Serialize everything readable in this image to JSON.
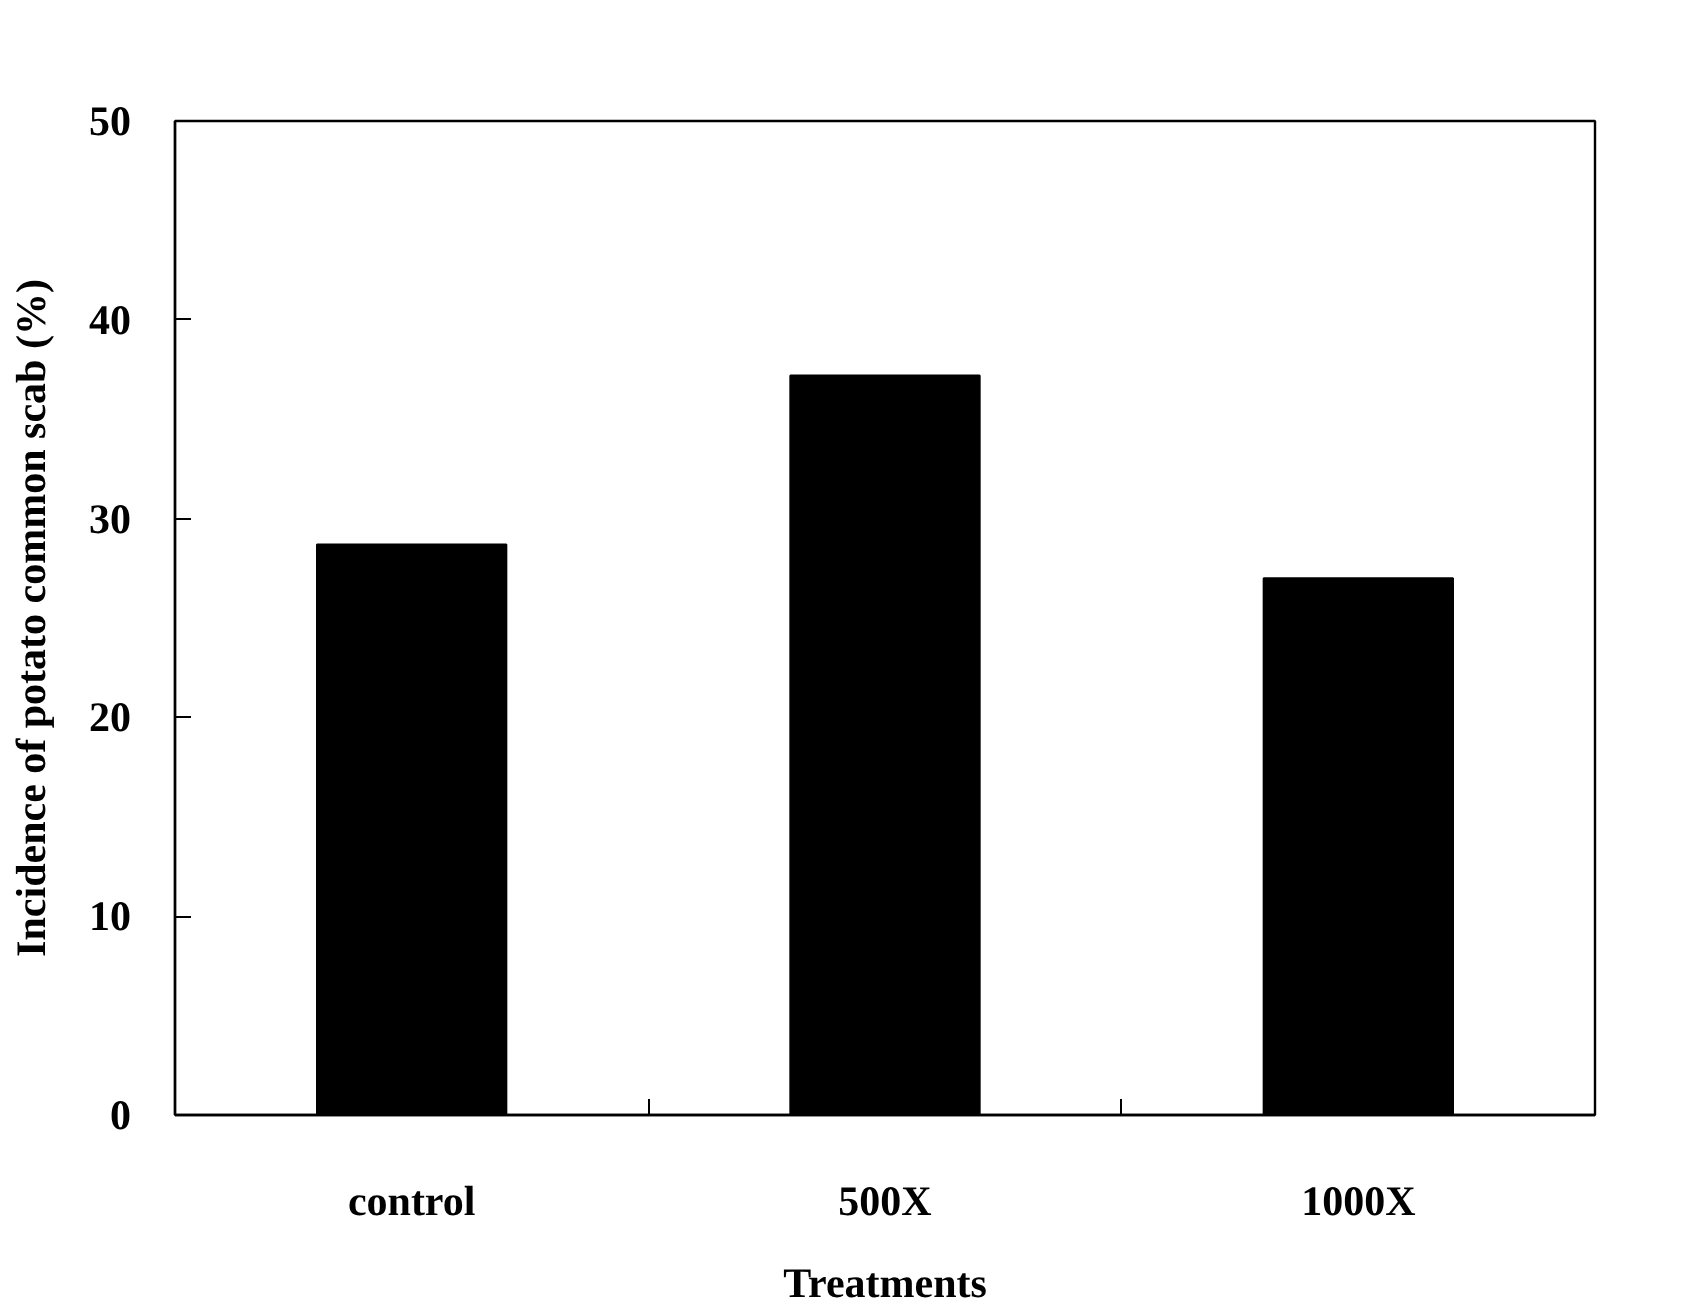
{
  "chart_data": {
    "type": "bar",
    "xlabel": "Treatments",
    "ylabel": "Incidence of potato common scab (%)",
    "categories": [
      "control",
      "500X",
      "1000X"
    ],
    "values": [
      28.7,
      37.2,
      27.0
    ],
    "color": "#000000",
    "ylim": [
      0,
      50
    ],
    "yticks": [
      0,
      10,
      20,
      30,
      40,
      50
    ],
    "grid": false
  }
}
